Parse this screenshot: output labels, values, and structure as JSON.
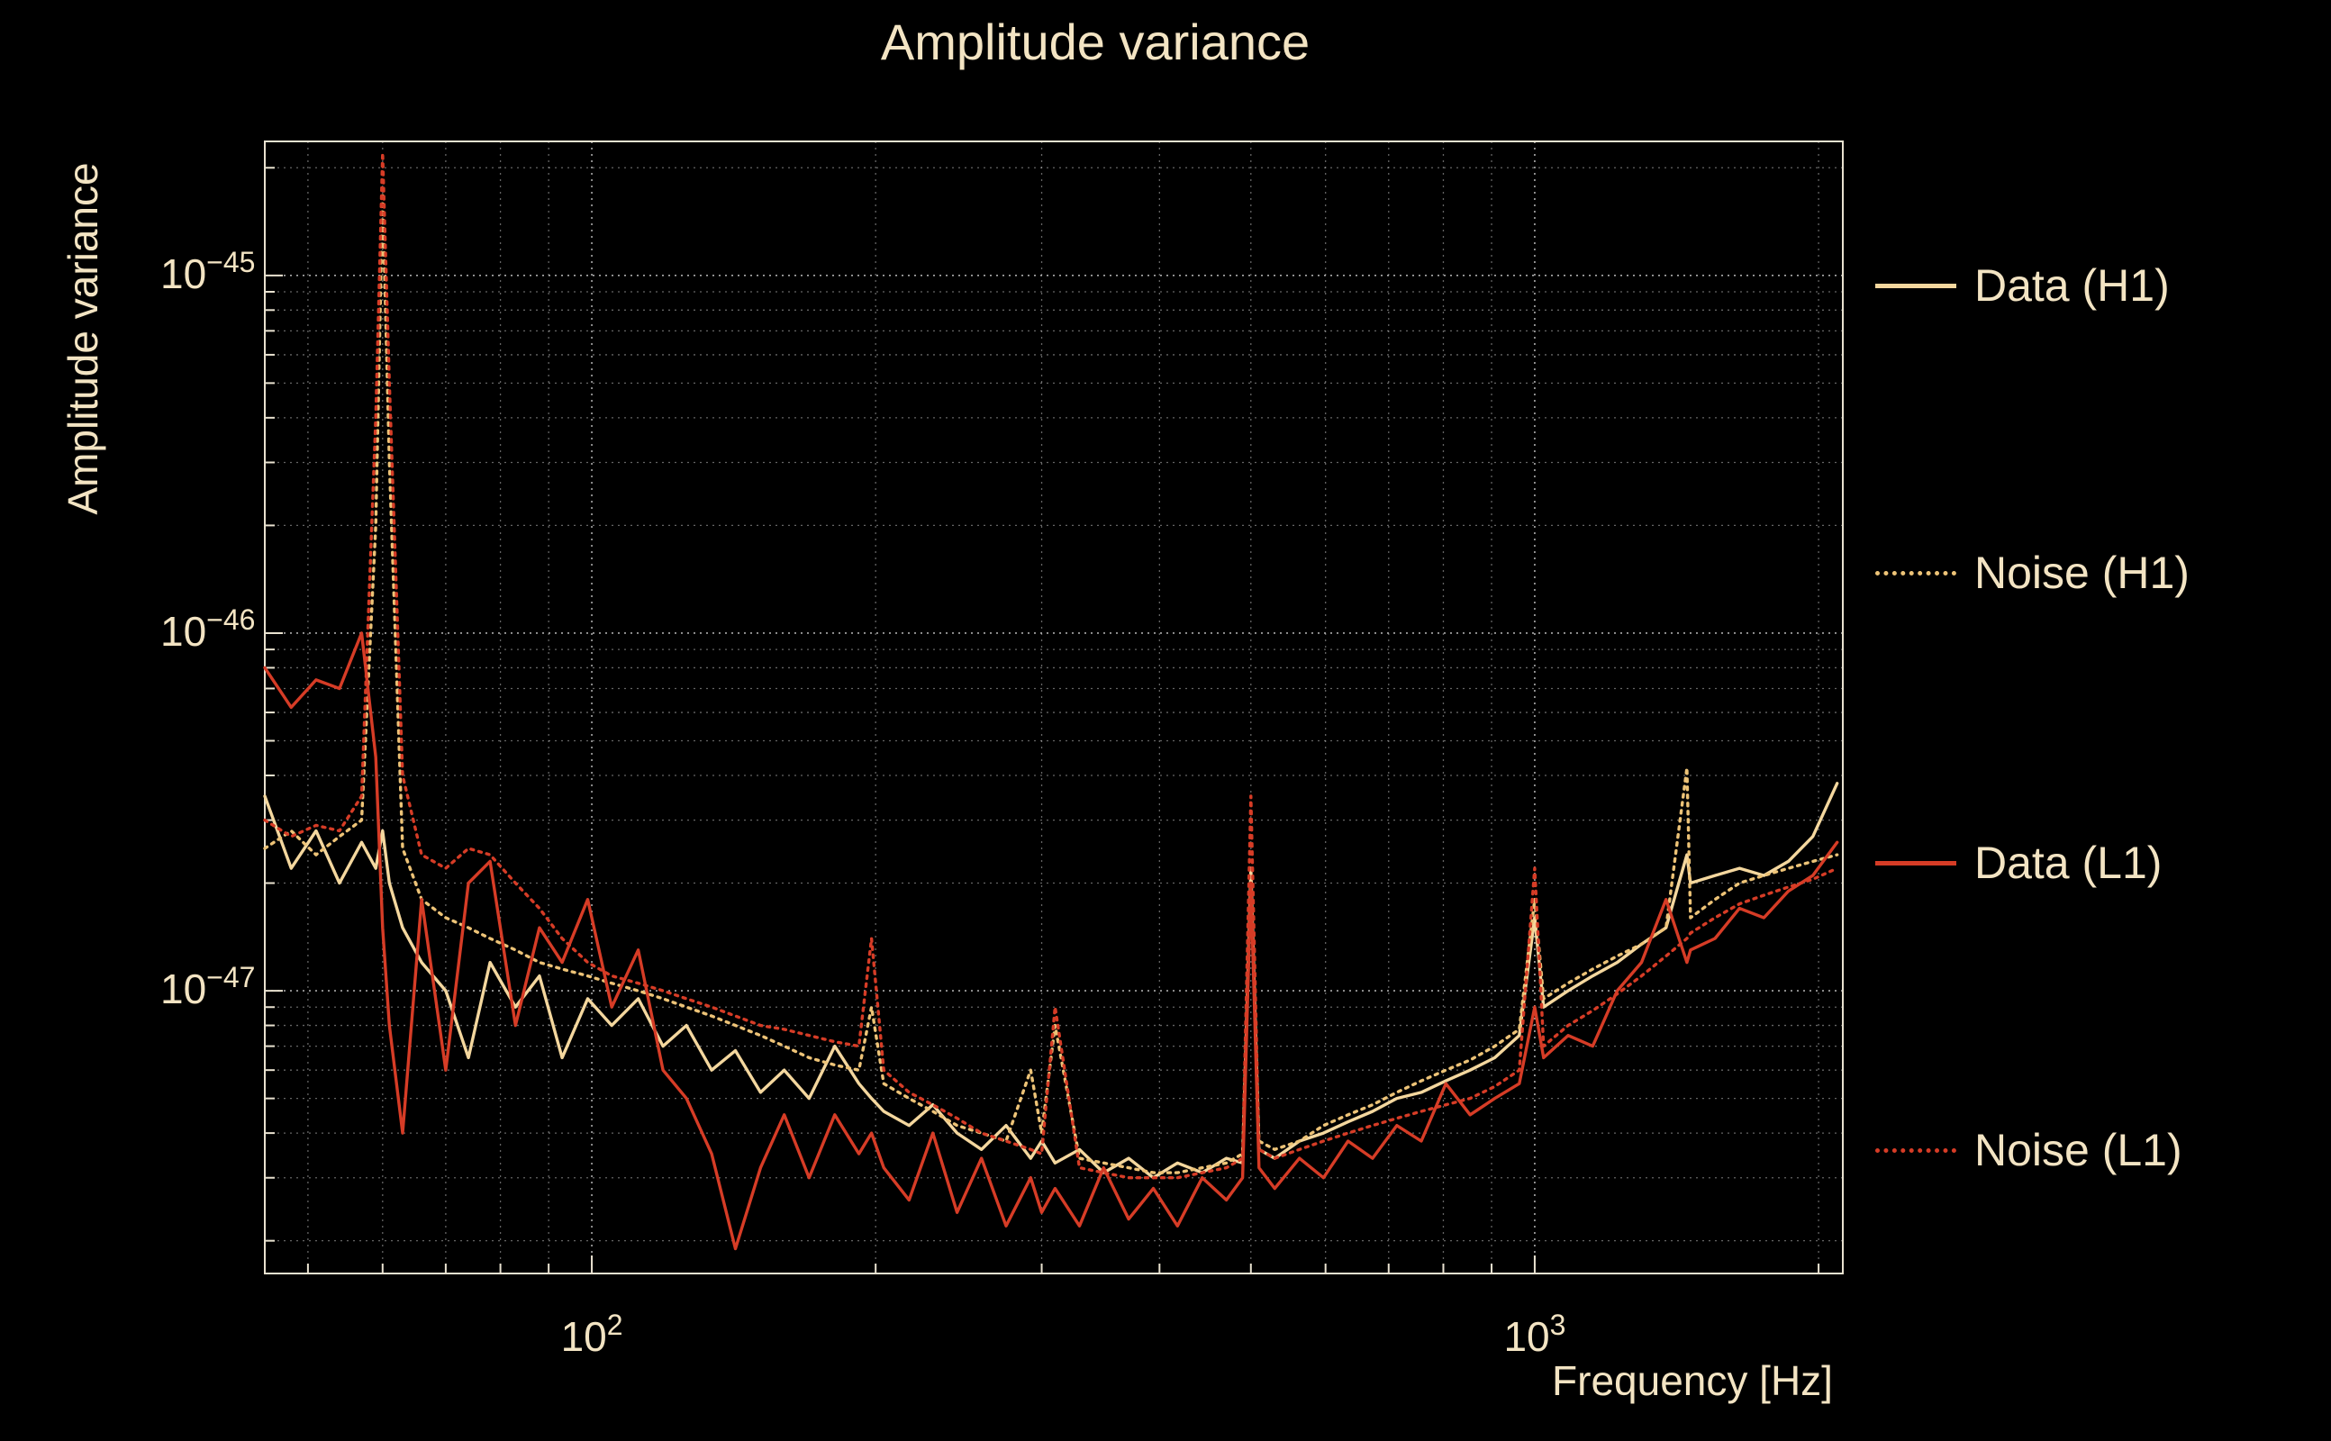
{
  "chart_data": {
    "type": "line",
    "title": "Amplitude variance",
    "xlabel": "Frequency [Hz]",
    "ylabel": "Amplitude variance",
    "xscale": "log",
    "yscale": "log",
    "xlim": [
      45,
      2122
    ],
    "ylim": [
      1.62e-48,
      2.37e-45
    ],
    "grid": true,
    "legend_position": "right-outside",
    "x_ticks": [
      {
        "value": 100,
        "base": "10",
        "exp": "2"
      },
      {
        "value": 1000,
        "base": "10",
        "exp": "3"
      }
    ],
    "y_ticks": [
      {
        "value": 1e-45,
        "base": "10",
        "exp": "−45"
      },
      {
        "value": 1e-46,
        "base": "10",
        "exp": "−46"
      },
      {
        "value": 1e-47,
        "base": "10",
        "exp": "−47"
      }
    ],
    "value_scale": 1e-48,
    "x": [
      45,
      48,
      51,
      54,
      57,
      59,
      60,
      61,
      63,
      66,
      70,
      74,
      78,
      83,
      88,
      93,
      99,
      105,
      112,
      119,
      126,
      134,
      142,
      151,
      160,
      170,
      181,
      192,
      198,
      204,
      217,
      230,
      244,
      259,
      275,
      292,
      300,
      310,
      329,
      349,
      371,
      394,
      418,
      444,
      471,
      490,
      500,
      510,
      530,
      563,
      597,
      634,
      673,
      714,
      758,
      805,
      854,
      907,
      963,
      1000,
      1022,
      1085,
      1152,
      1223,
      1298,
      1378,
      1450,
      1463,
      1553,
      1649,
      1750,
      1858,
      1972,
      2093
    ],
    "series": [
      {
        "name": "Data (H1)",
        "color": "#f4d79e",
        "style": "solid",
        "values": [
          35,
          22,
          28,
          20,
          26,
          22,
          28,
          20,
          15,
          12,
          10,
          6.5,
          12,
          9,
          11,
          6.5,
          9.5,
          8,
          9.5,
          7,
          8,
          6,
          6.8,
          5.2,
          6,
          5,
          7,
          5.5,
          5,
          4.6,
          4.2,
          4.8,
          4,
          3.6,
          4.2,
          3.4,
          3.8,
          3.3,
          3.6,
          3.1,
          3.4,
          3.0,
          3.3,
          3.1,
          3.4,
          3.3,
          22,
          3.6,
          3.4,
          3.8,
          4.0,
          4.3,
          4.6,
          5.0,
          5.2,
          5.6,
          6.0,
          6.5,
          7.5,
          16,
          9,
          10,
          11,
          12,
          13.5,
          15,
          24,
          20,
          21,
          22,
          21,
          23,
          27,
          38
        ]
      },
      {
        "name": "Noise (H1)",
        "color": "#edc377",
        "style": "dotted",
        "values": [
          25,
          28,
          24,
          27,
          30,
          200,
          1700,
          300,
          25,
          18,
          16,
          15,
          14,
          13,
          12,
          11.5,
          11,
          10.5,
          10,
          9.5,
          9,
          8.5,
          8,
          7.5,
          7,
          6.5,
          6.2,
          6.0,
          9,
          5.5,
          5.0,
          4.6,
          4.2,
          4.0,
          3.8,
          6,
          4.0,
          8,
          3.4,
          3.3,
          3.2,
          3.1,
          3.1,
          3.2,
          3.3,
          3.5,
          20,
          3.8,
          3.6,
          3.8,
          4.2,
          4.5,
          4.8,
          5.2,
          5.6,
          6.0,
          6.4,
          7.0,
          7.8,
          18,
          9.5,
          10.5,
          11.5,
          12.5,
          13.5,
          15,
          42,
          16,
          18,
          20,
          21,
          22,
          23,
          24
        ]
      },
      {
        "name": "Data (L1)",
        "color": "#d63c26",
        "style": "solid",
        "values": [
          80,
          62,
          74,
          70,
          100,
          45,
          15,
          8,
          4,
          18,
          6,
          20,
          23,
          8,
          15,
          12,
          18,
          9,
          13,
          6,
          5,
          3.5,
          1.9,
          3.2,
          4.5,
          3.0,
          4.5,
          3.5,
          4.0,
          3.2,
          2.6,
          4.0,
          2.4,
          3.4,
          2.2,
          3.0,
          2.4,
          2.8,
          2.2,
          3.2,
          2.3,
          2.8,
          2.2,
          3.0,
          2.6,
          3.0,
          20,
          3.2,
          2.8,
          3.4,
          3.0,
          3.8,
          3.4,
          4.2,
          3.8,
          5.5,
          4.5,
          5.0,
          5.5,
          9,
          6.5,
          7.5,
          7.0,
          10,
          12,
          18,
          12,
          13,
          14,
          17,
          16,
          19,
          21,
          26
        ]
      },
      {
        "name": "Noise (L1)",
        "color": "#d63c26",
        "style": "dotted",
        "values": [
          30,
          27,
          29,
          28,
          35,
          400,
          2200,
          500,
          40,
          24,
          22,
          25,
          24,
          20,
          17,
          14,
          12,
          11,
          10.5,
          10,
          9.5,
          9,
          8.5,
          8,
          7.8,
          7.5,
          7.2,
          7.0,
          14,
          6.0,
          5.2,
          4.8,
          4.4,
          4.0,
          3.8,
          3.6,
          3.5,
          9,
          3.2,
          3.1,
          3.0,
          3.0,
          3.0,
          3.1,
          3.2,
          3.4,
          35,
          3.6,
          3.4,
          3.6,
          3.8,
          4.0,
          4.2,
          4.4,
          4.6,
          4.8,
          5.0,
          5.4,
          6.0,
          22,
          7.0,
          8.0,
          8.8,
          9.8,
          11,
          12.5,
          14,
          14.5,
          16,
          17.5,
          18.5,
          19.5,
          20.5,
          22
        ]
      }
    ]
  },
  "colors": {
    "background": "#000000",
    "text": "#f3e4c3",
    "axis": "#e9e2d0",
    "grid": "#c9c9c9",
    "data_h1": "#f4d79e",
    "noise_h1": "#edc377",
    "data_l1": "#d63c26",
    "noise_l1": "#d63c26"
  }
}
